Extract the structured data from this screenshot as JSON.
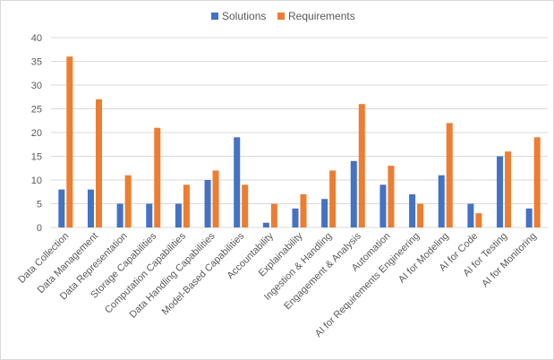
{
  "chart_data": {
    "type": "bar",
    "categories": [
      "Data Collection",
      "Data Management",
      "Data Representation",
      "Storage Capabilities",
      "Computation Capabilities",
      "Data Handling Capabilities",
      "Model-Based Capabilities",
      "Accountability",
      "Explainability",
      "Ingestion & Handling",
      "Engagement & Analysis",
      "Automation",
      "AI for Requirements Engineering",
      "AI for Modeling",
      "AI for Code",
      "AI for Testing",
      "AI for Monitoring"
    ],
    "series": [
      {
        "name": "Solutions",
        "color": "#4472C4",
        "values": [
          8,
          8,
          5,
          5,
          5,
          10,
          19,
          1,
          4,
          6,
          14,
          9,
          7,
          11,
          5,
          15,
          4
        ]
      },
      {
        "name": "Requirements",
        "color": "#ED7D31",
        "values": [
          36,
          27,
          11,
          21,
          9,
          12,
          9,
          5,
          7,
          12,
          26,
          13,
          5,
          22,
          3,
          16,
          19
        ]
      }
    ],
    "yticks": [
      "0",
      "5",
      "10",
      "15",
      "20",
      "25",
      "30",
      "35",
      "40"
    ],
    "ylim": [
      0,
      40
    ],
    "grid": true,
    "legend": "top-center",
    "title": "",
    "xlabel": "",
    "ylabel": ""
  },
  "colors": {
    "gridline": "#D9D9D9",
    "axis_text": "#595959",
    "border": "#D9D9D9"
  }
}
